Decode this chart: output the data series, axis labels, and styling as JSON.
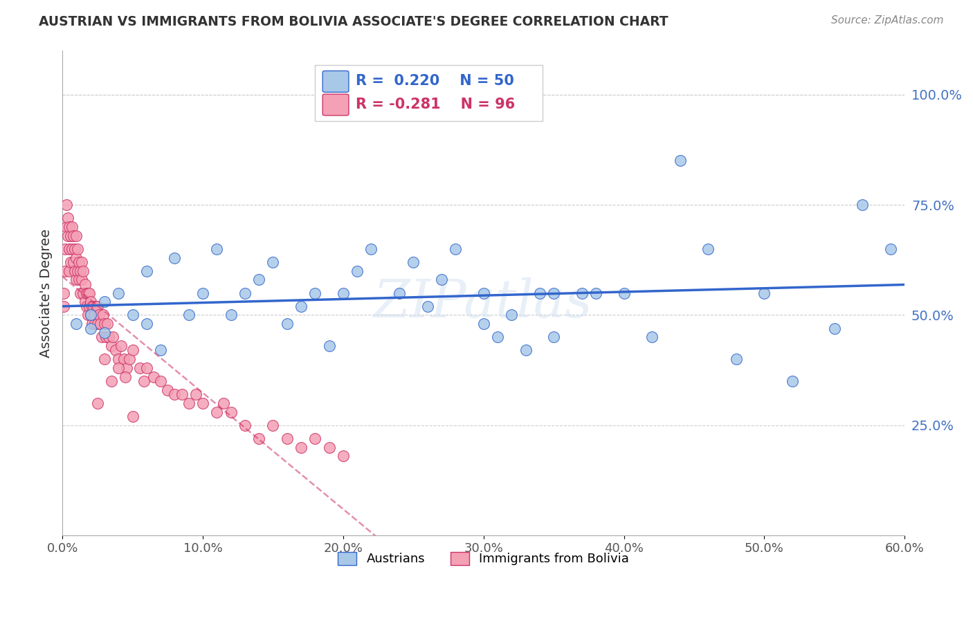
{
  "title": "AUSTRIAN VS IMMIGRANTS FROM BOLIVIA ASSOCIATE'S DEGREE CORRELATION CHART",
  "source": "Source: ZipAtlas.com",
  "ylabel": "Associate's Degree",
  "yticks_right": [
    "100.0%",
    "75.0%",
    "50.0%",
    "25.0%"
  ],
  "ytick_vals": [
    1.0,
    0.75,
    0.5,
    0.25
  ],
  "xmin": 0.0,
  "xmax": 0.6,
  "ymin": 0.0,
  "ymax": 1.1,
  "legend_blue_r": "R =  0.220",
  "legend_blue_n": "N = 50",
  "legend_pink_r": "R = -0.281",
  "legend_pink_n": "N = 96",
  "legend_label_blue": "Austrians",
  "legend_label_pink": "Immigrants from Bolivia",
  "blue_color": "#a8c8e8",
  "pink_color": "#f4a0b5",
  "blue_line_color": "#3366cc",
  "pink_line_color": "#cc3366",
  "blue_scatter_x": [
    0.01,
    0.02,
    0.02,
    0.03,
    0.03,
    0.04,
    0.05,
    0.06,
    0.06,
    0.07,
    0.08,
    0.09,
    0.1,
    0.11,
    0.12,
    0.13,
    0.14,
    0.15,
    0.16,
    0.17,
    0.18,
    0.19,
    0.2,
    0.21,
    0.22,
    0.24,
    0.25,
    0.26,
    0.27,
    0.28,
    0.3,
    0.3,
    0.31,
    0.32,
    0.33,
    0.34,
    0.35,
    0.35,
    0.37,
    0.38,
    0.4,
    0.42,
    0.44,
    0.46,
    0.48,
    0.5,
    0.52,
    0.55,
    0.57,
    0.59
  ],
  "blue_scatter_y": [
    0.48,
    0.5,
    0.47,
    0.53,
    0.46,
    0.55,
    0.5,
    0.48,
    0.6,
    0.42,
    0.63,
    0.5,
    0.55,
    0.65,
    0.5,
    0.55,
    0.58,
    0.62,
    0.48,
    0.52,
    0.55,
    0.43,
    0.55,
    0.6,
    0.65,
    0.55,
    0.62,
    0.52,
    0.58,
    0.65,
    0.48,
    0.55,
    0.45,
    0.5,
    0.42,
    0.55,
    0.55,
    0.45,
    0.55,
    0.55,
    0.55,
    0.45,
    0.85,
    0.65,
    0.4,
    0.55,
    0.35,
    0.47,
    0.75,
    0.65
  ],
  "pink_scatter_x": [
    0.001,
    0.001,
    0.002,
    0.002,
    0.003,
    0.003,
    0.004,
    0.004,
    0.005,
    0.005,
    0.005,
    0.006,
    0.006,
    0.007,
    0.007,
    0.008,
    0.008,
    0.009,
    0.009,
    0.01,
    0.01,
    0.01,
    0.011,
    0.011,
    0.012,
    0.012,
    0.013,
    0.013,
    0.014,
    0.014,
    0.015,
    0.015,
    0.016,
    0.016,
    0.017,
    0.017,
    0.018,
    0.018,
    0.019,
    0.019,
    0.02,
    0.02,
    0.021,
    0.021,
    0.022,
    0.022,
    0.023,
    0.023,
    0.024,
    0.025,
    0.025,
    0.026,
    0.027,
    0.028,
    0.029,
    0.03,
    0.031,
    0.032,
    0.033,
    0.035,
    0.036,
    0.038,
    0.04,
    0.042,
    0.044,
    0.046,
    0.048,
    0.05,
    0.055,
    0.058,
    0.06,
    0.065,
    0.07,
    0.075,
    0.08,
    0.085,
    0.09,
    0.095,
    0.1,
    0.11,
    0.115,
    0.12,
    0.13,
    0.14,
    0.15,
    0.16,
    0.17,
    0.18,
    0.19,
    0.2,
    0.025,
    0.03,
    0.035,
    0.04,
    0.045,
    0.05
  ],
  "pink_scatter_y": [
    0.52,
    0.55,
    0.6,
    0.65,
    0.7,
    0.75,
    0.68,
    0.72,
    0.6,
    0.65,
    0.7,
    0.62,
    0.68,
    0.65,
    0.7,
    0.62,
    0.68,
    0.6,
    0.65,
    0.58,
    0.63,
    0.68,
    0.6,
    0.65,
    0.58,
    0.62,
    0.55,
    0.6,
    0.58,
    0.62,
    0.55,
    0.6,
    0.53,
    0.57,
    0.52,
    0.55,
    0.5,
    0.55,
    0.52,
    0.55,
    0.5,
    0.53,
    0.48,
    0.52,
    0.5,
    0.52,
    0.48,
    0.5,
    0.52,
    0.48,
    0.52,
    0.5,
    0.48,
    0.45,
    0.5,
    0.48,
    0.45,
    0.48,
    0.45,
    0.43,
    0.45,
    0.42,
    0.4,
    0.43,
    0.4,
    0.38,
    0.4,
    0.42,
    0.38,
    0.35,
    0.38,
    0.36,
    0.35,
    0.33,
    0.32,
    0.32,
    0.3,
    0.32,
    0.3,
    0.28,
    0.3,
    0.28,
    0.25,
    0.22,
    0.25,
    0.22,
    0.2,
    0.22,
    0.2,
    0.18,
    0.3,
    0.4,
    0.35,
    0.38,
    0.36,
    0.27
  ],
  "watermark": "ZIPatlas",
  "grid_color": "#cccccc",
  "background_color": "#ffffff",
  "title_color": "#333333",
  "right_axis_color": "#4472c4",
  "title_fontsize": 13.5,
  "source_fontsize": 11,
  "legend_fontsize": 15,
  "axis_fontsize": 13
}
